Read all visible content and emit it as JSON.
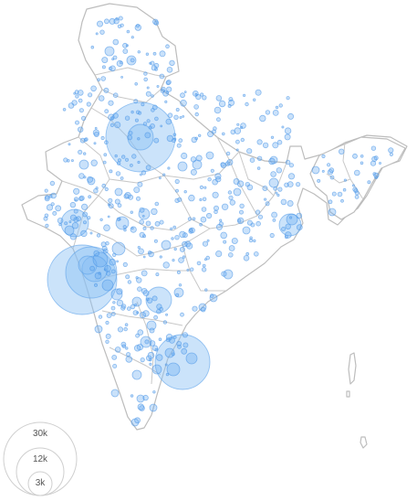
{
  "legend": {
    "items": [
      {
        "label": "30k",
        "value": 30000
      },
      {
        "label": "12k",
        "value": 12000
      },
      {
        "label": "3k",
        "value": 3000
      }
    ]
  },
  "colors": {
    "bubble_fill": "#63a9f2",
    "bubble_stroke": "#4a95e6",
    "outline": "#bdbdbd",
    "legend_stroke": "#cfcfcf",
    "legend_text": "#555555"
  }
}
